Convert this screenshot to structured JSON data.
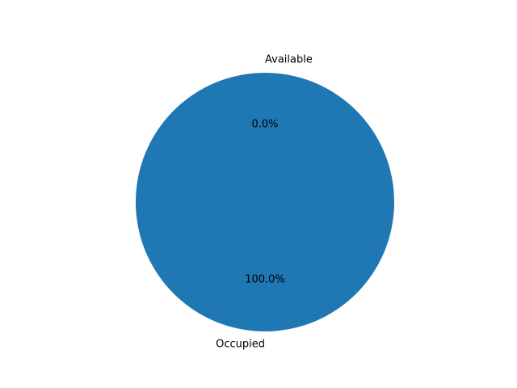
{
  "chart_data": {
    "type": "pie",
    "categories": [
      "Occupied",
      "Available"
    ],
    "values": [
      100.0,
      0.0
    ],
    "percent_labels": [
      "100.0%",
      "0.0%"
    ],
    "colors": [
      "#1f77b4",
      "#ff7f0e"
    ],
    "title": "",
    "legend": false
  }
}
